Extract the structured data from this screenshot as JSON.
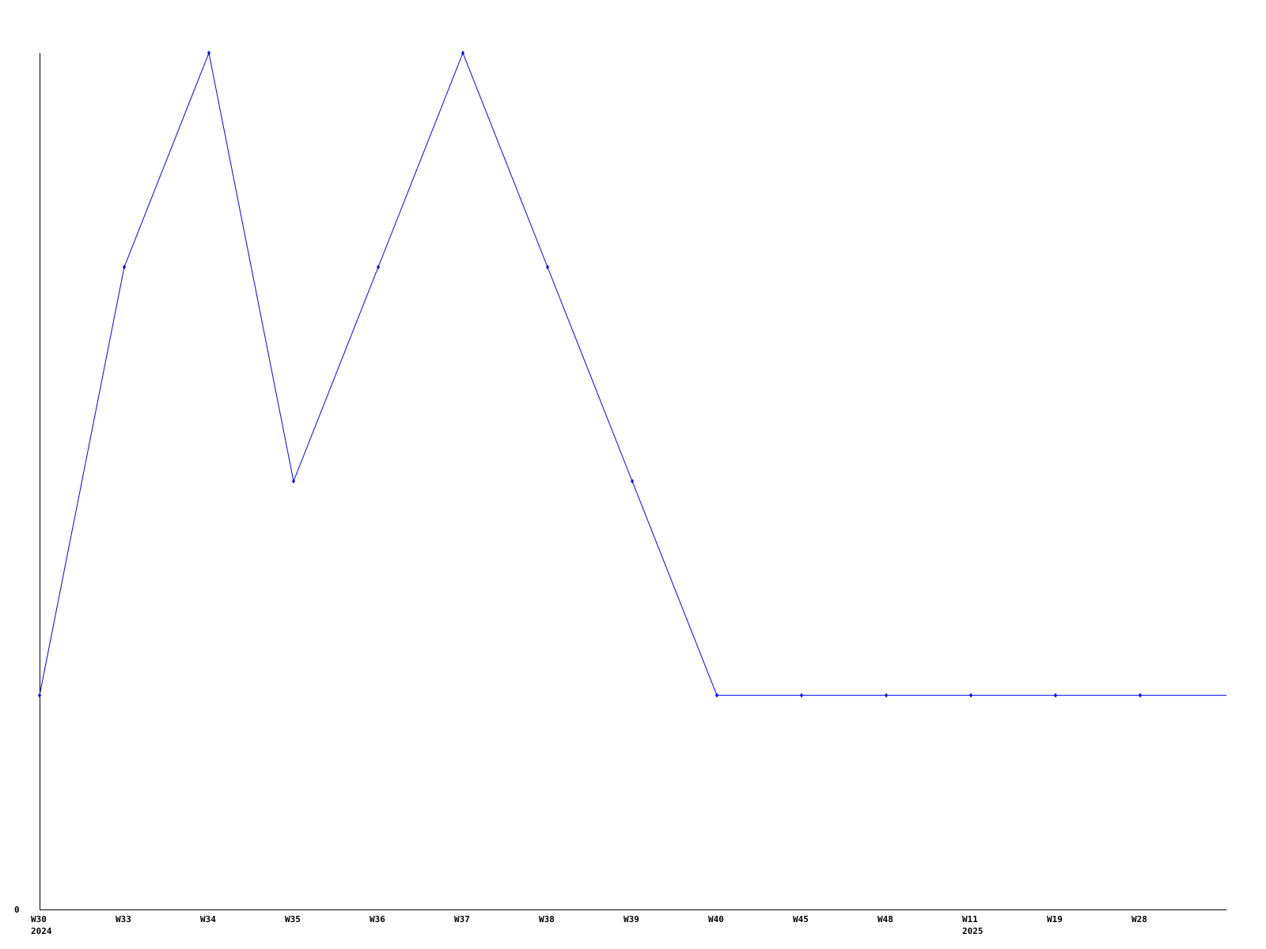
{
  "chart_data": {
    "type": "line",
    "title": "",
    "xlabel": "",
    "ylabel": "",
    "categories": [
      "W30",
      "W33",
      "W34",
      "W35",
      "W36",
      "W37",
      "W38",
      "W39",
      "W40",
      "W45",
      "W48",
      "W11",
      "W19",
      "W28"
    ],
    "year_labels": [
      {
        "category": "W30",
        "label": "2024"
      },
      {
        "category": "W11",
        "label": "2025"
      }
    ],
    "values": [
      1,
      3,
      4,
      2,
      3,
      4,
      3,
      2,
      1,
      1,
      1,
      1,
      1,
      1
    ],
    "continues_right_value": 1,
    "y_tick_labels": [
      "0"
    ],
    "ylim": [
      0,
      4
    ],
    "grid": false,
    "line_color": "#0000ff",
    "axis_color": "#000000"
  }
}
